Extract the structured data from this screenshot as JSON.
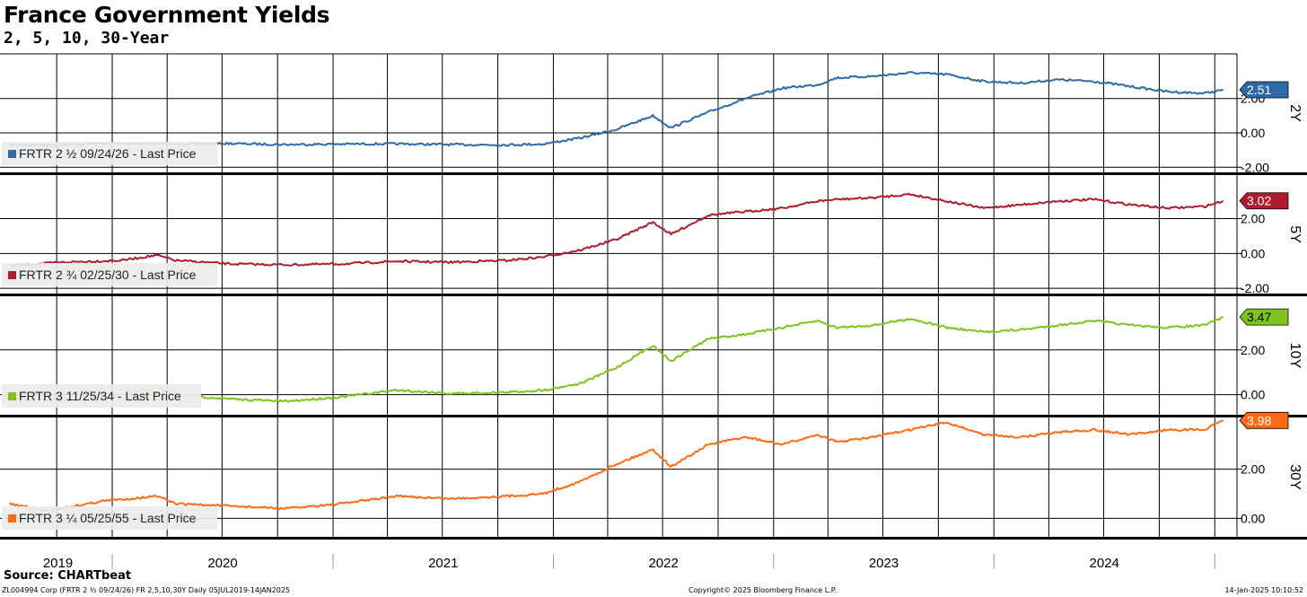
{
  "header": {
    "title": "France Government Yields",
    "subtitle": "2, 5, 10, 30-Year"
  },
  "footer": {
    "source": "Source: CHARTbeat",
    "left": "ZL004994 Corp (FRTR 2 ½ 09/24/26) FR 2,5,10,30Y  Daily 05JUL2019-14JAN2025",
    "middle": "Copyright© 2025 Bloomberg Finance L.P.",
    "right": "14-Jan-2025 10:10:52"
  },
  "chart_data": {
    "type": "line",
    "x_axis": {
      "range": [
        "2019-07-05",
        "2025-01-14"
      ],
      "year_labels": [
        "2019",
        "2020",
        "2021",
        "2022",
        "2023",
        "2024"
      ],
      "grid": true
    },
    "panels": [
      {
        "tenor": "2Y",
        "color": "#2e6aa6",
        "legend": "FRTR 2 ½ 09/24/26 - Last Price",
        "last_value": "2.51",
        "yticks": [
          "2.00",
          "0.00",
          "-2.00"
        ],
        "ylim": [
          -2.3,
          4.6
        ],
        "x": [
          "2019-07",
          "2019-10",
          "2020-01",
          "2020-04",
          "2020-07",
          "2020-10",
          "2021-01",
          "2021-04",
          "2021-07",
          "2021-10",
          "2021-12",
          "2022-02",
          "2022-04",
          "2022-06",
          "2022-07",
          "2022-09",
          "2022-11",
          "2023-01",
          "2023-03",
          "2023-04",
          "2023-06",
          "2023-08",
          "2023-10",
          "2023-12",
          "2024-02",
          "2024-04",
          "2024-06",
          "2024-08",
          "2024-10",
          "2024-12",
          "2025-01"
        ],
        "y": [
          -0.7,
          -0.68,
          -0.6,
          -0.65,
          -0.62,
          -0.68,
          -0.65,
          -0.64,
          -0.68,
          -0.7,
          -0.65,
          -0.3,
          0.2,
          1.0,
          0.3,
          1.2,
          2.0,
          2.6,
          2.8,
          3.2,
          3.3,
          3.5,
          3.4,
          3.0,
          2.9,
          3.1,
          3.0,
          2.7,
          2.4,
          2.3,
          2.51
        ]
      },
      {
        "tenor": "5Y",
        "color": "#b01c2e",
        "legend": "FRTR 2 ¾ 02/25/30 - Last Price",
        "last_value": "3.02",
        "yticks": [
          "2.00",
          "0.00",
          "-2.00"
        ],
        "ylim": [
          -2.3,
          4.5
        ],
        "x": [
          "2019-07",
          "2019-10",
          "2020-01",
          "2020-03",
          "2020-04",
          "2020-07",
          "2020-10",
          "2021-01",
          "2021-04",
          "2021-07",
          "2021-10",
          "2021-12",
          "2022-02",
          "2022-04",
          "2022-06",
          "2022-07",
          "2022-09",
          "2022-11",
          "2023-01",
          "2023-03",
          "2023-04",
          "2023-06",
          "2023-08",
          "2023-10",
          "2023-12",
          "2024-02",
          "2024-04",
          "2024-06",
          "2024-08",
          "2024-10",
          "2024-12",
          "2025-01"
        ],
        "y": [
          -0.7,
          -0.5,
          -0.4,
          -0.1,
          -0.4,
          -0.6,
          -0.65,
          -0.6,
          -0.45,
          -0.5,
          -0.4,
          -0.2,
          0.2,
          0.8,
          1.8,
          1.1,
          2.2,
          2.4,
          2.6,
          3.0,
          3.1,
          3.2,
          3.4,
          3.0,
          2.6,
          2.8,
          3.0,
          3.1,
          2.8,
          2.6,
          2.7,
          3.02
        ]
      },
      {
        "tenor": "10Y",
        "color": "#7fc41c",
        "legend": "FRTR 3 11/25/34 - Last Price",
        "last_value": "3.47",
        "yticks": [
          "2.00",
          "0.00"
        ],
        "ylim": [
          -0.9,
          4.4
        ],
        "x": [
          "2019-07",
          "2019-10",
          "2020-01",
          "2020-03",
          "2020-04",
          "2020-07",
          "2020-10",
          "2021-01",
          "2021-04",
          "2021-07",
          "2021-10",
          "2021-12",
          "2022-02",
          "2022-04",
          "2022-06",
          "2022-07",
          "2022-09",
          "2022-11",
          "2023-01",
          "2023-03",
          "2023-04",
          "2023-06",
          "2023-08",
          "2023-10",
          "2023-12",
          "2024-02",
          "2024-04",
          "2024-06",
          "2024-08",
          "2024-10",
          "2024-12",
          "2025-01"
        ],
        "y": [
          -0.1,
          -0.3,
          0.0,
          0.3,
          0.0,
          -0.2,
          -0.3,
          -0.1,
          0.2,
          0.05,
          0.1,
          0.2,
          0.5,
          1.2,
          2.2,
          1.5,
          2.5,
          2.7,
          3.0,
          3.3,
          3.0,
          3.1,
          3.4,
          3.0,
          2.8,
          2.9,
          3.1,
          3.3,
          3.1,
          3.0,
          3.1,
          3.47
        ]
      },
      {
        "tenor": "30Y",
        "color": "#ff6a13",
        "legend": "FRTR 3 ¼ 05/25/55 - Last Price",
        "last_value": "3.98",
        "yticks": [
          "2.00",
          "0.00"
        ],
        "ylim": [
          -0.75,
          4.1
        ],
        "x": [
          "2019-07",
          "2019-09",
          "2019-12",
          "2020-03",
          "2020-04",
          "2020-07",
          "2020-10",
          "2021-01",
          "2021-04",
          "2021-07",
          "2021-10",
          "2021-12",
          "2022-02",
          "2022-04",
          "2022-06",
          "2022-07",
          "2022-09",
          "2022-11",
          "2023-01",
          "2023-03",
          "2023-04",
          "2023-06",
          "2023-08",
          "2023-10",
          "2023-12",
          "2024-02",
          "2024-04",
          "2024-06",
          "2024-08",
          "2024-10",
          "2024-12",
          "2025-01"
        ],
        "y": [
          0.6,
          0.3,
          0.7,
          0.9,
          0.6,
          0.5,
          0.4,
          0.6,
          0.9,
          0.8,
          0.9,
          1.0,
          1.5,
          2.2,
          2.8,
          2.1,
          3.0,
          3.3,
          3.0,
          3.4,
          3.1,
          3.3,
          3.6,
          3.9,
          3.4,
          3.3,
          3.5,
          3.6,
          3.4,
          3.6,
          3.6,
          3.98
        ]
      }
    ]
  }
}
